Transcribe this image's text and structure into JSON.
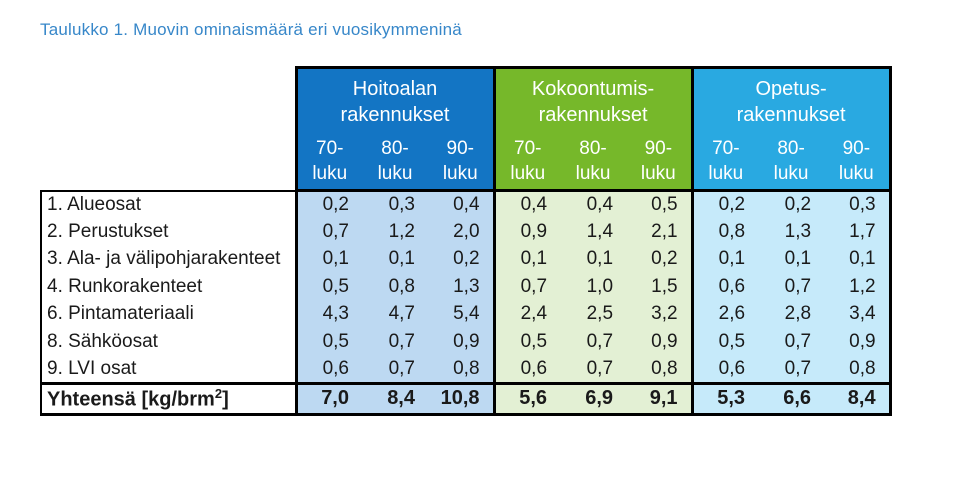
{
  "title": "Taulukko 1. Muovin ominaismäärä eri vuosikymmeninä",
  "colors": {
    "title": "#3787C9",
    "group1_header": "#1375C4",
    "group2_header": "#76B82A",
    "group3_header": "#29A9E1",
    "group1_body": "#BDD9F2",
    "group2_body": "#E3F0D4",
    "group3_body": "#C6EAFA",
    "border": "#000000",
    "text": "#1A1A1A"
  },
  "table": {
    "groups": [
      {
        "name": "Hoitoalan rakennukset",
        "l1": "Hoitoalan",
        "l2": "rakennukset"
      },
      {
        "name": "Kokoontumisrakennukset",
        "l1": "Kokoontumis-",
        "l2": "rakennukset"
      },
      {
        "name": "Opetusrakennukset",
        "l1": "Opetus-",
        "l2": "rakennukset"
      }
    ],
    "decades": [
      {
        "name": "70-luku",
        "l1": "70-",
        "l2": "luku"
      },
      {
        "name": "80-luku",
        "l1": "80-",
        "l2": "luku"
      },
      {
        "name": "90-luku",
        "l1": "90-",
        "l2": "luku"
      }
    ],
    "rows": [
      {
        "label": "1. Alueosat",
        "values": [
          "0,2",
          "0,3",
          "0,4",
          "0,4",
          "0,4",
          "0,5",
          "0,2",
          "0,2",
          "0,3"
        ]
      },
      {
        "label": "2. Perustukset",
        "values": [
          "0,7",
          "1,2",
          "2,0",
          "0,9",
          "1,4",
          "2,1",
          "0,8",
          "1,3",
          "1,7"
        ]
      },
      {
        "label": "3. Ala- ja välipohjarakenteet",
        "values": [
          "0,1",
          "0,1",
          "0,2",
          "0,1",
          "0,1",
          "0,2",
          "0,1",
          "0,1",
          "0,1"
        ]
      },
      {
        "label": "4. Runkorakenteet",
        "values": [
          "0,5",
          "0,8",
          "1,3",
          "0,7",
          "1,0",
          "1,5",
          "0,6",
          "0,7",
          "1,2"
        ]
      },
      {
        "label": "6. Pintamateriaali",
        "values": [
          "4,3",
          "4,7",
          "5,4",
          "2,4",
          "2,5",
          "3,2",
          "2,6",
          "2,8",
          "3,4"
        ]
      },
      {
        "label": "8. Sähköosat",
        "values": [
          "0,5",
          "0,7",
          "0,9",
          "0,5",
          "0,7",
          "0,9",
          "0,5",
          "0,7",
          "0,9"
        ]
      },
      {
        "label": "9. LVI osat",
        "values": [
          "0,6",
          "0,7",
          "0,8",
          "0,6",
          "0,7",
          "0,8",
          "0,6",
          "0,7",
          "0,8"
        ]
      }
    ],
    "total": {
      "label_prefix": "Yhteensä [kg/brm",
      "label_sup": "2",
      "label_suffix": "]",
      "values": [
        "7,0",
        "8,4",
        "10,8",
        "5,6",
        "6,9",
        "9,1",
        "5,3",
        "6,6",
        "8,4"
      ]
    }
  }
}
